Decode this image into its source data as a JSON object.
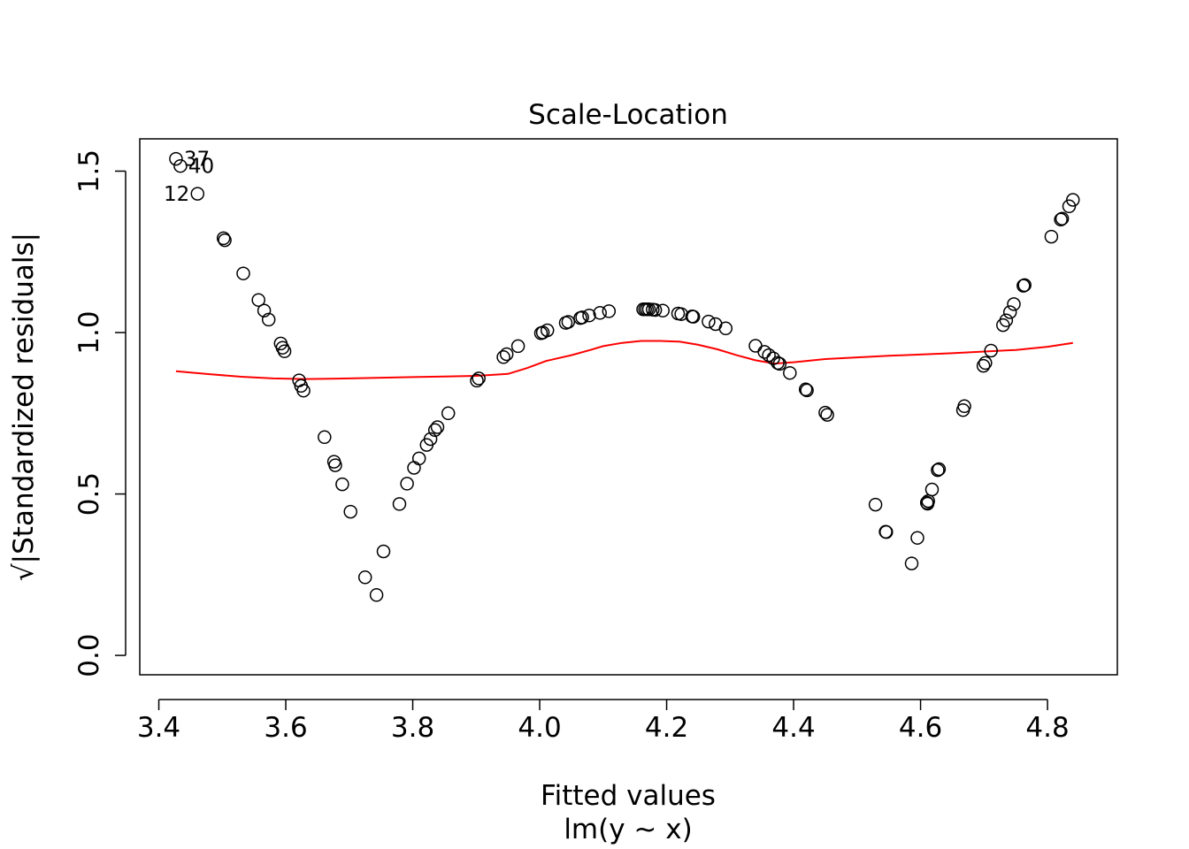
{
  "chart_data": {
    "type": "scatter",
    "title": "Scale-Location",
    "xlabel": "Fitted values",
    "sub": "lm(y ~ x)",
    "ylabel": "√|Standardized residuals|",
    "xlim": [
      3.37,
      4.91
    ],
    "ylim": [
      -0.06,
      1.6
    ],
    "xticks": [
      3.4,
      3.6,
      3.8,
      4.0,
      4.2,
      4.4,
      4.6,
      4.8
    ],
    "xtick_labels": [
      "3.4",
      "3.6",
      "3.8",
      "4.0",
      "4.2",
      "4.4",
      "4.6",
      "4.8"
    ],
    "yticks": [
      0.0,
      0.5,
      1.0,
      1.5
    ],
    "ytick_labels": [
      "0.0",
      "0.5",
      "1.0",
      "1.5"
    ],
    "grid": false,
    "colors": {
      "points": "#000000",
      "smooth": "#ff0000"
    },
    "points": [
      [
        3.427,
        1.538
      ],
      [
        3.434,
        1.516
      ],
      [
        3.461,
        1.43
      ],
      [
        3.502,
        1.292
      ],
      [
        3.504,
        1.286
      ],
      [
        3.533,
        1.183
      ],
      [
        3.557,
        1.101
      ],
      [
        3.566,
        1.068
      ],
      [
        3.573,
        1.04
      ],
      [
        3.592,
        0.966
      ],
      [
        3.595,
        0.953
      ],
      [
        3.598,
        0.942
      ],
      [
        3.621,
        0.852
      ],
      [
        3.624,
        0.835
      ],
      [
        3.628,
        0.82
      ],
      [
        3.661,
        0.676
      ],
      [
        3.676,
        0.6
      ],
      [
        3.678,
        0.589
      ],
      [
        3.689,
        0.53
      ],
      [
        3.702,
        0.445
      ],
      [
        3.725,
        0.242
      ],
      [
        3.743,
        0.187
      ],
      [
        3.754,
        0.322
      ],
      [
        3.779,
        0.469
      ],
      [
        3.791,
        0.532
      ],
      [
        3.802,
        0.581
      ],
      [
        3.81,
        0.61
      ],
      [
        3.822,
        0.652
      ],
      [
        3.828,
        0.67
      ],
      [
        3.835,
        0.698
      ],
      [
        3.839,
        0.707
      ],
      [
        3.856,
        0.75
      ],
      [
        3.901,
        0.851
      ],
      [
        3.904,
        0.858
      ],
      [
        3.943,
        0.924
      ],
      [
        3.948,
        0.933
      ],
      [
        3.966,
        0.958
      ],
      [
        4.002,
        0.998
      ],
      [
        4.005,
        1.0
      ],
      [
        4.012,
        1.007
      ],
      [
        4.041,
        1.03
      ],
      [
        4.045,
        1.033
      ],
      [
        4.064,
        1.045
      ],
      [
        4.067,
        1.047
      ],
      [
        4.078,
        1.053
      ],
      [
        4.095,
        1.061
      ],
      [
        4.109,
        1.066
      ],
      [
        4.163,
        1.072
      ],
      [
        4.166,
        1.072
      ],
      [
        4.169,
        1.072
      ],
      [
        4.172,
        1.072
      ],
      [
        4.178,
        1.071
      ],
      [
        4.182,
        1.07
      ],
      [
        4.194,
        1.068
      ],
      [
        4.218,
        1.059
      ],
      [
        4.223,
        1.057
      ],
      [
        4.24,
        1.05
      ],
      [
        4.242,
        1.049
      ],
      [
        4.266,
        1.034
      ],
      [
        4.277,
        1.026
      ],
      [
        4.293,
        1.013
      ],
      [
        4.34,
        0.959
      ],
      [
        4.354,
        0.94
      ],
      [
        4.361,
        0.93
      ],
      [
        4.368,
        0.92
      ],
      [
        4.375,
        0.906
      ],
      [
        4.378,
        0.903
      ],
      [
        4.394,
        0.875
      ],
      [
        4.419,
        0.824
      ],
      [
        4.421,
        0.821
      ],
      [
        4.45,
        0.752
      ],
      [
        4.453,
        0.745
      ],
      [
        4.529,
        0.467
      ],
      [
        4.545,
        0.383
      ],
      [
        4.546,
        0.382
      ],
      [
        4.586,
        0.285
      ],
      [
        4.595,
        0.364
      ],
      [
        4.61,
        0.473
      ],
      [
        4.611,
        0.47
      ],
      [
        4.612,
        0.478
      ],
      [
        4.618,
        0.514
      ],
      [
        4.627,
        0.574
      ],
      [
        4.629,
        0.577
      ],
      [
        4.667,
        0.76
      ],
      [
        4.669,
        0.772
      ],
      [
        4.699,
        0.897
      ],
      [
        4.702,
        0.906
      ],
      [
        4.711,
        0.944
      ],
      [
        4.73,
        1.023
      ],
      [
        4.735,
        1.038
      ],
      [
        4.741,
        1.063
      ],
      [
        4.747,
        1.088
      ],
      [
        4.762,
        1.145
      ],
      [
        4.764,
        1.147
      ],
      [
        4.806,
        1.297
      ],
      [
        4.821,
        1.35
      ],
      [
        4.823,
        1.353
      ],
      [
        4.834,
        1.391
      ],
      [
        4.84,
        1.411
      ]
    ],
    "smooth_line": [
      [
        3.427,
        0.88
      ],
      [
        3.48,
        0.871
      ],
      [
        3.53,
        0.863
      ],
      [
        3.58,
        0.858
      ],
      [
        3.63,
        0.856
      ],
      [
        3.7,
        0.858
      ],
      [
        3.8,
        0.862
      ],
      [
        3.9,
        0.866
      ],
      [
        3.95,
        0.872
      ],
      [
        3.98,
        0.89
      ],
      [
        4.01,
        0.912
      ],
      [
        4.05,
        0.93
      ],
      [
        4.08,
        0.946
      ],
      [
        4.1,
        0.958
      ],
      [
        4.13,
        0.968
      ],
      [
        4.16,
        0.974
      ],
      [
        4.19,
        0.974
      ],
      [
        4.22,
        0.972
      ],
      [
        4.25,
        0.962
      ],
      [
        4.28,
        0.948
      ],
      [
        4.31,
        0.93
      ],
      [
        4.34,
        0.914
      ],
      [
        4.37,
        0.904
      ],
      [
        4.4,
        0.908
      ],
      [
        4.45,
        0.918
      ],
      [
        4.55,
        0.928
      ],
      [
        4.65,
        0.936
      ],
      [
        4.75,
        0.946
      ],
      [
        4.8,
        0.956
      ],
      [
        4.84,
        0.968
      ]
    ],
    "point_labels": [
      {
        "index": 0,
        "label": "37",
        "pos": "right"
      },
      {
        "index": 1,
        "label": "40",
        "pos": "right"
      },
      {
        "index": 2,
        "label": "12",
        "pos": "left"
      }
    ]
  }
}
